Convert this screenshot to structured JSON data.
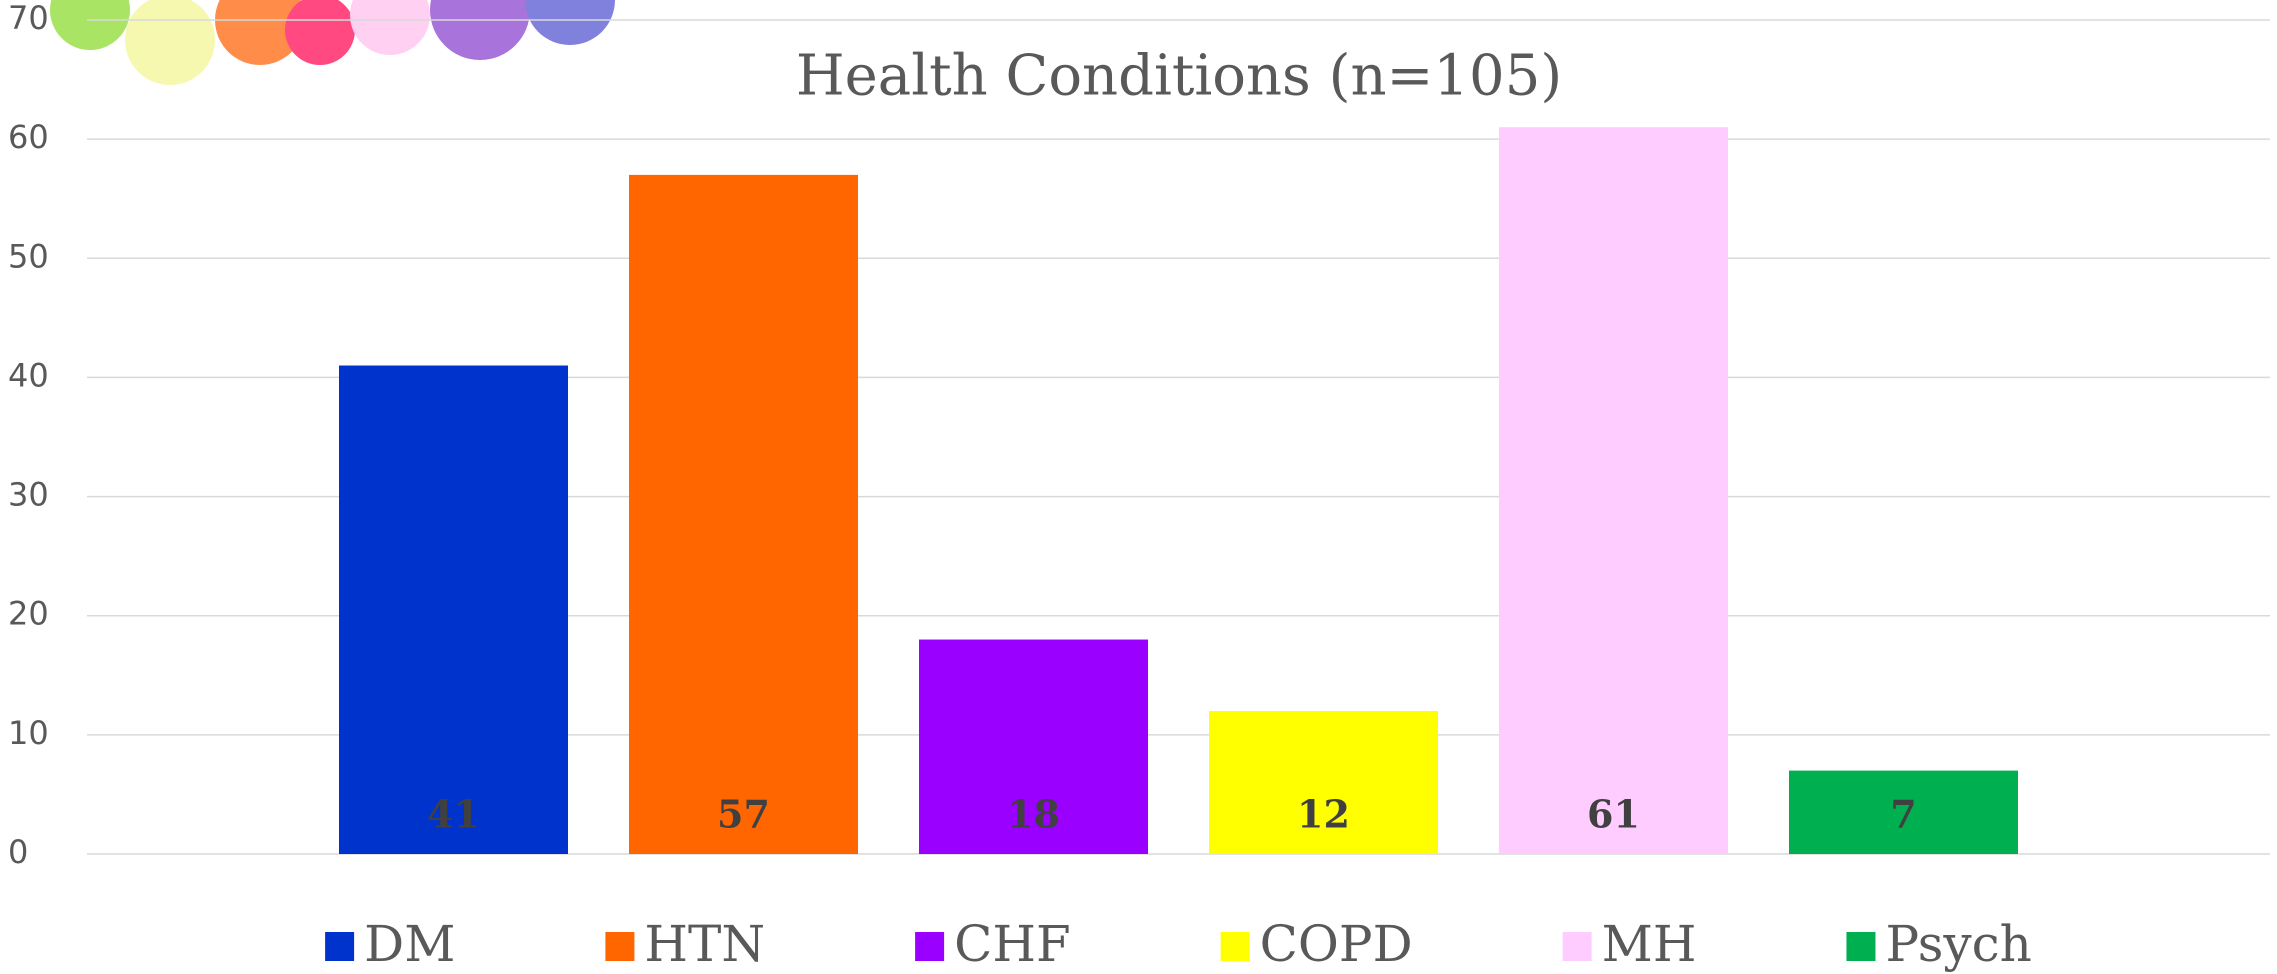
{
  "chart_data": {
    "type": "bar",
    "title": "Health Conditions (n=105)",
    "series": [
      {
        "name": "DM",
        "color": "#0033cc",
        "values": [
          41
        ]
      },
      {
        "name": "HTN",
        "color": "#ff6600",
        "values": [
          57
        ]
      },
      {
        "name": "CHF",
        "color": "#9900ff",
        "values": [
          18
        ]
      },
      {
        "name": "COPD",
        "color": "#ffff00",
        "values": [
          12
        ]
      },
      {
        "name": "MH",
        "color": "#ffccff",
        "values": [
          61
        ]
      },
      {
        "name": "Psych",
        "color": "#00b050",
        "values": [
          7
        ]
      }
    ],
    "ylim": [
      0,
      70
    ],
    "yticks": [
      0,
      10,
      20,
      30,
      40,
      50,
      60,
      70
    ],
    "grid": true,
    "legend": "bottom"
  }
}
